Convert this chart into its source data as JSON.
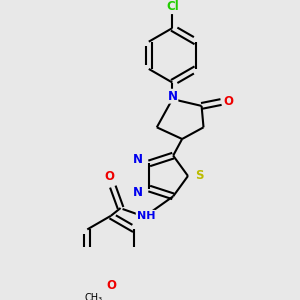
{
  "background_color": "#e8e8e8",
  "bond_color": "#000000",
  "atom_colors": {
    "Cl": "#22cc00",
    "N": "#0000ee",
    "O": "#ee0000",
    "S": "#bbbb00",
    "C": "#000000",
    "H": "#000000"
  },
  "figsize": [
    3.0,
    3.0
  ],
  "dpi": 100
}
